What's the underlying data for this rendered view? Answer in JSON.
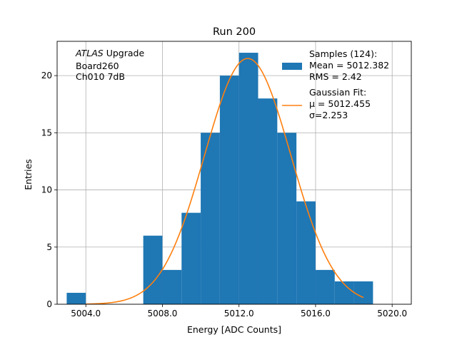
{
  "chart_data": {
    "type": "bar",
    "title": "Run 200",
    "xlabel": "Energy [ADC Counts]",
    "ylabel": "Entries",
    "xlim": [
      5002.5,
      5021.0
    ],
    "ylim": [
      0,
      23
    ],
    "grid": true,
    "x_ticks": [
      5004.0,
      5008.0,
      5012.0,
      5016.0,
      5020.0
    ],
    "x_tick_labels": [
      "5004.0",
      "5008.0",
      "5012.0",
      "5016.0",
      "5020.0"
    ],
    "y_ticks": [
      0,
      5,
      10,
      15,
      20
    ],
    "y_tick_labels": [
      "0",
      "5",
      "10",
      "15",
      "20"
    ],
    "histogram": {
      "bin_edges": [
        5003,
        5004,
        5005,
        5006,
        5007,
        5008,
        5009,
        5010,
        5011,
        5012,
        5013,
        5014,
        5015,
        5016,
        5017,
        5018,
        5019
      ],
      "counts": [
        1,
        0,
        0,
        0,
        6,
        3,
        8,
        15,
        20,
        22,
        18,
        15,
        9,
        3,
        2,
        2
      ],
      "color": "#1f77b4"
    },
    "gaussian_fit": {
      "mu": 5012.455,
      "sigma": 2.253,
      "amplitude": 21.5,
      "x_range": [
        5004.0,
        5018.5
      ],
      "color": "#ff7f0e"
    },
    "legend": {
      "placement": "top-right",
      "entries": [
        {
          "kind": "patch",
          "color": "#1f77b4",
          "lines": [
            "Samples (124):",
            " Mean = 5012.382",
            " RMS = 2.42"
          ]
        },
        {
          "kind": "line",
          "color": "#ff7f0e",
          "lines": [
            "Gaussian Fit:",
            " μ = 5012.455",
            " σ=2.253"
          ]
        }
      ]
    },
    "annotation": {
      "italic": "ATLAS",
      "rest": " Upgrade",
      "lines": [
        " Board260",
        " Ch010 7dB"
      ],
      "placement": "top-left"
    }
  }
}
